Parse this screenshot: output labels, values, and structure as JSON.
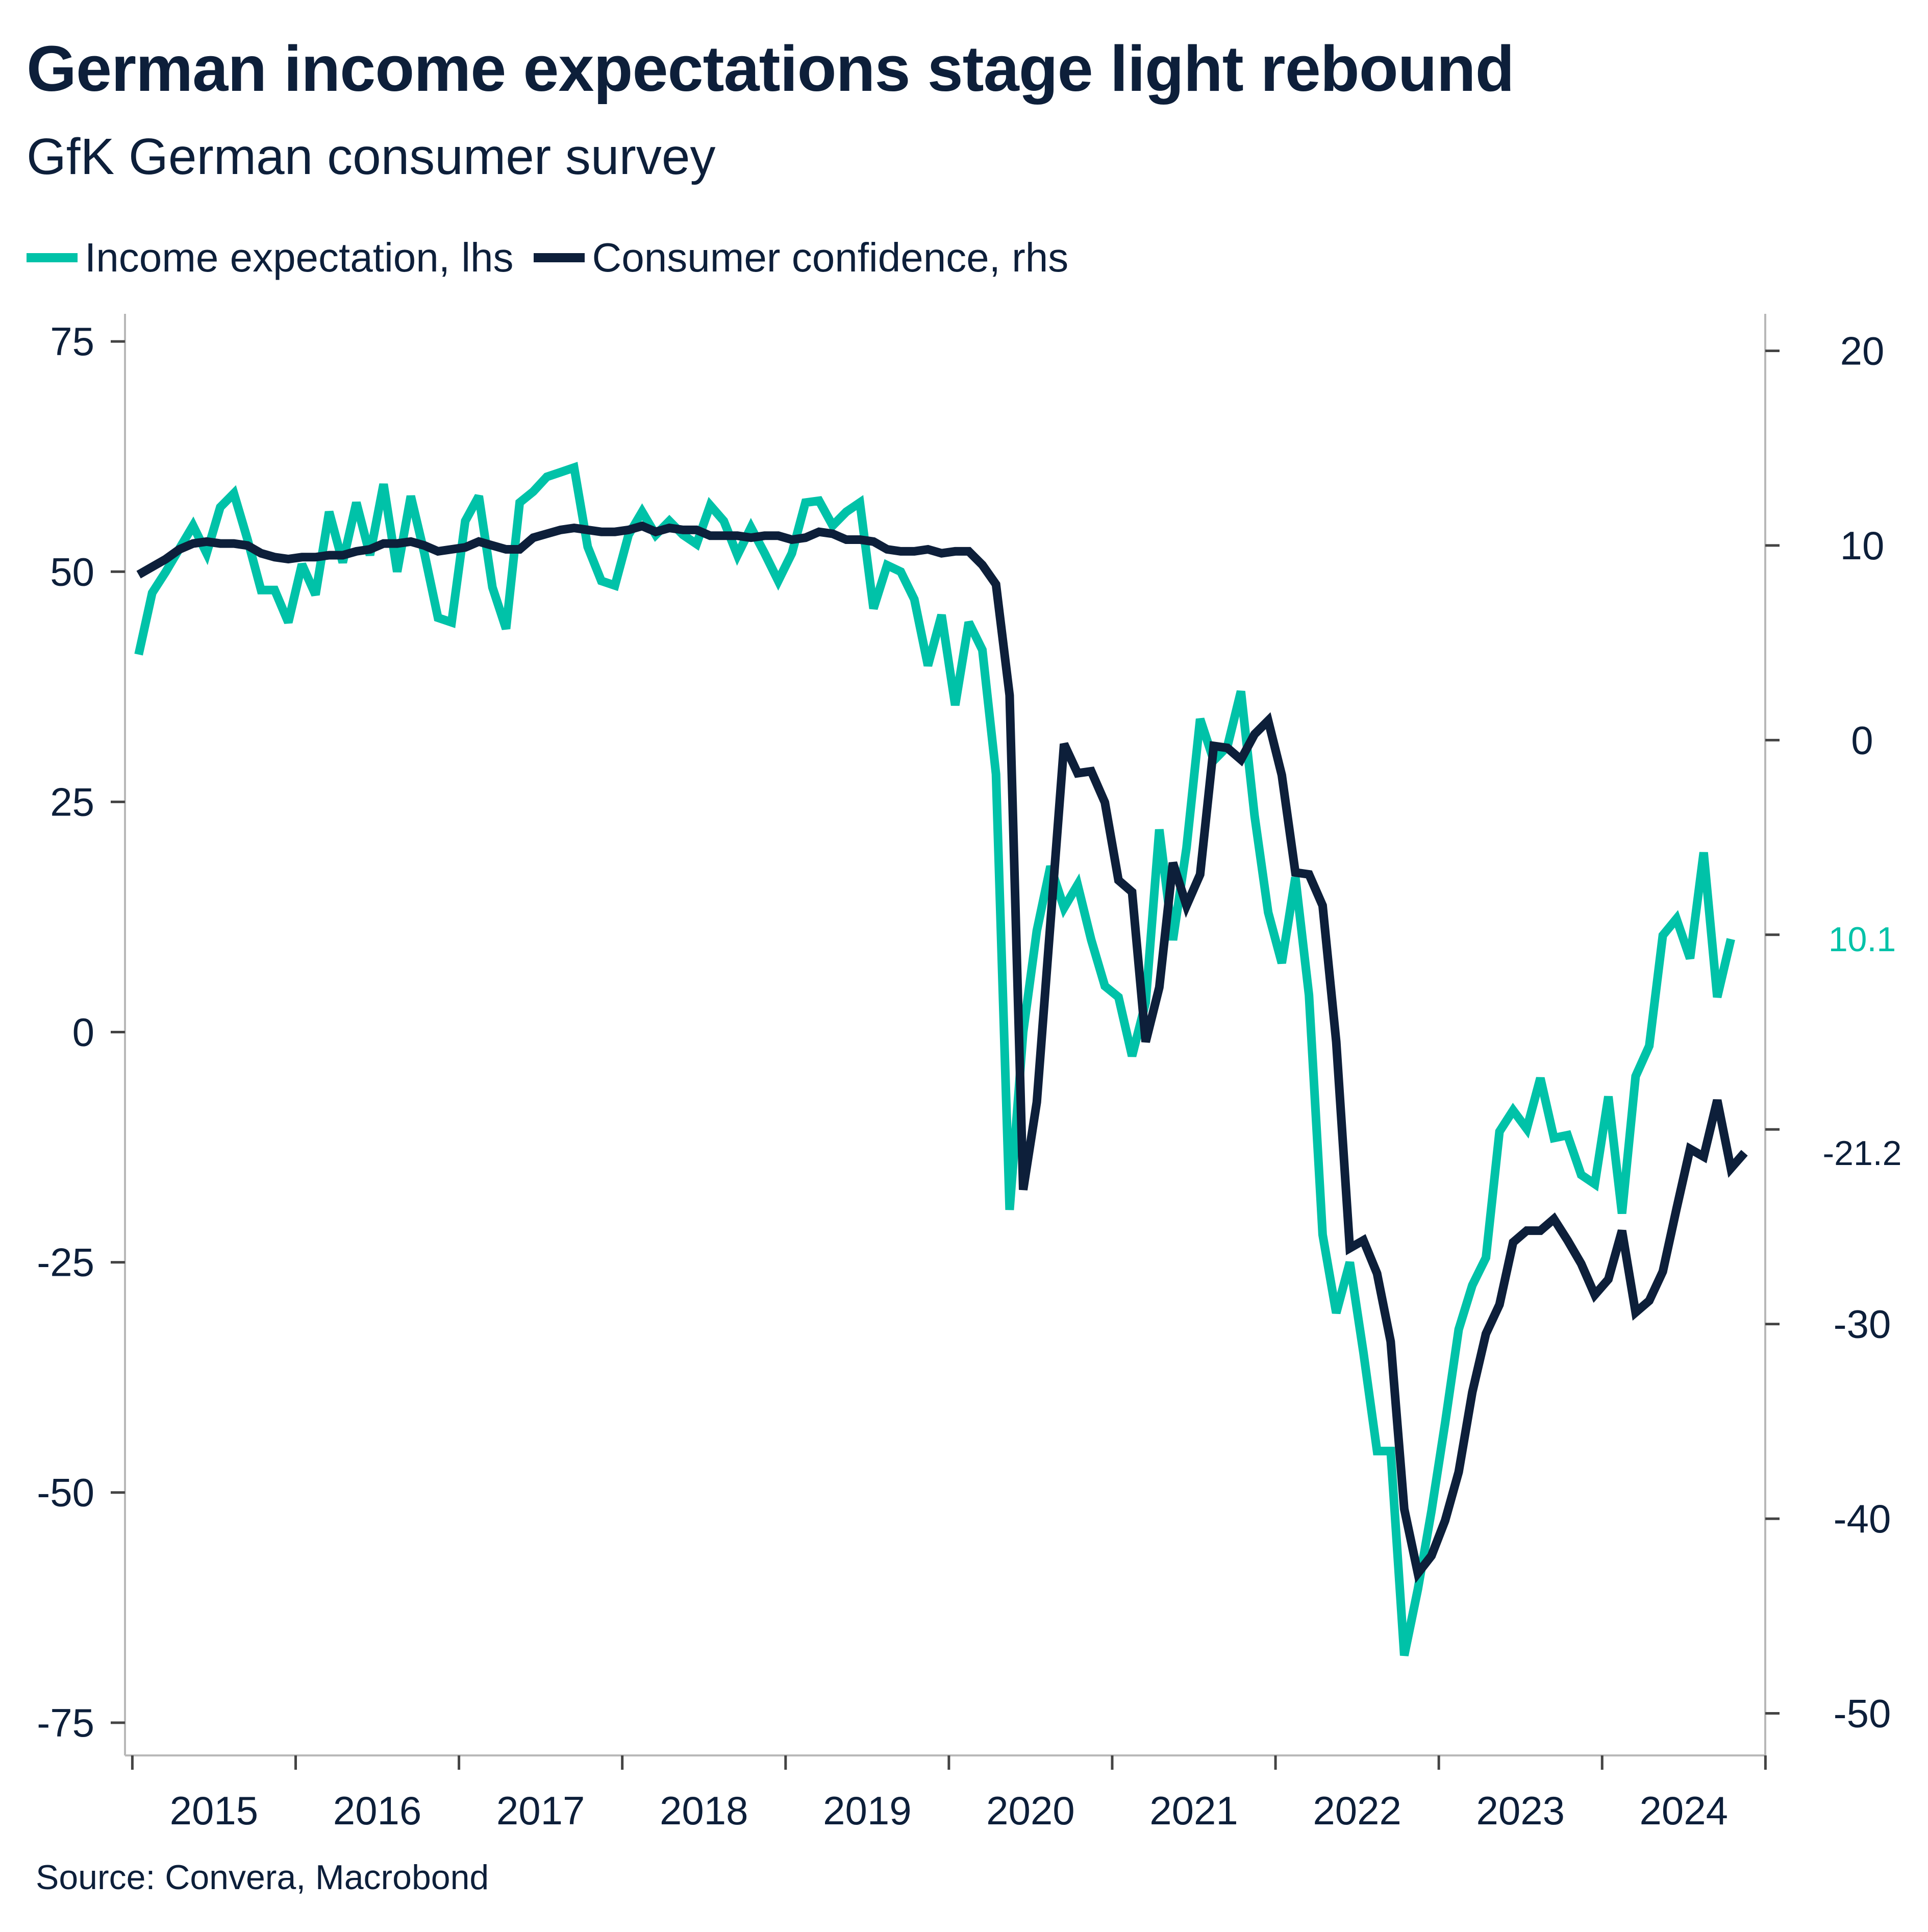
{
  "title": "German income expectations stage light rebound",
  "subtitle": "GfK German consumer survey",
  "source": "Source: Convera, Macrobond",
  "colors": {
    "income": "#00c2a8",
    "confidence": "#0d1f3a",
    "axis": "#b8b8b8",
    "text": "#0d1f3a"
  },
  "legend": {
    "income_label": "Income expectation, lhs",
    "confidence_label": "Consumer confidence, rhs"
  },
  "end_labels": {
    "income": "10.1",
    "confidence": "-21.2"
  },
  "chart_data": {
    "type": "line",
    "x_axis": {
      "type": "time",
      "range": [
        "2014-12-15",
        "2024-12-31"
      ],
      "tick_labels": [
        "2015",
        "2016",
        "2017",
        "2018",
        "2019",
        "2020",
        "2021",
        "2022",
        "2023",
        "2024"
      ],
      "label_placement": "centered-between-ticks"
    },
    "y_left": {
      "ticks": [
        75,
        50,
        25,
        0,
        -25,
        -50,
        -75
      ],
      "tick_labels": [
        "75",
        "50",
        "25",
        "0",
        "-25",
        "-50",
        "-75"
      ],
      "range": [
        -78,
        78
      ]
    },
    "y_right": {
      "ticks": [
        20,
        10,
        0,
        -10,
        -20,
        -30,
        -40,
        -50
      ],
      "tick_labels": [
        "20",
        "10",
        "0",
        "",
        "",
        "-30",
        "-40",
        "-50"
      ],
      "range": [
        -51.9,
        21.9
      ]
    },
    "grid": false,
    "legend_placement": "top-left",
    "series": [
      {
        "name": "Income expectation, lhs",
        "axis": "left",
        "color": "#00c2a8",
        "points": [
          [
            "2015-01",
            41
          ],
          [
            "2015-02",
            47.7
          ],
          [
            "2015-03",
            50
          ],
          [
            "2015-04",
            52.5
          ],
          [
            "2015-05",
            55
          ],
          [
            "2015-06",
            52
          ],
          [
            "2015-07",
            57
          ],
          [
            "2015-08",
            58.5
          ],
          [
            "2015-09",
            53.5
          ],
          [
            "2015-10",
            48
          ],
          [
            "2015-11",
            48
          ],
          [
            "2015-12",
            44.5
          ],
          [
            "2016-01",
            50.8
          ],
          [
            "2016-02",
            47.5
          ],
          [
            "2016-03",
            56.5
          ],
          [
            "2016-04",
            51
          ],
          [
            "2016-05",
            57.5
          ],
          [
            "2016-06",
            51.8
          ],
          [
            "2016-07",
            59.5
          ],
          [
            "2016-08",
            50
          ],
          [
            "2016-09",
            58.2
          ],
          [
            "2016-10",
            52
          ],
          [
            "2016-11",
            45
          ],
          [
            "2016-12",
            44.5
          ],
          [
            "2017-01",
            55.5
          ],
          [
            "2017-02",
            58.2
          ],
          [
            "2017-03",
            48.3
          ],
          [
            "2017-04",
            43.8
          ],
          [
            "2017-05",
            57.5
          ],
          [
            "2017-06",
            58.7
          ],
          [
            "2017-07",
            60.3
          ],
          [
            "2017-08",
            60.8
          ],
          [
            "2017-09",
            61.3
          ],
          [
            "2017-10",
            52.7
          ],
          [
            "2017-11",
            49
          ],
          [
            "2017-12",
            48.5
          ],
          [
            "2018-01",
            54
          ],
          [
            "2018-02",
            56.5
          ],
          [
            "2018-03",
            54
          ],
          [
            "2018-04",
            55.5
          ],
          [
            "2018-05",
            54
          ],
          [
            "2018-06",
            53
          ],
          [
            "2018-07",
            57.2
          ],
          [
            "2018-08",
            55.5
          ],
          [
            "2018-09",
            51.8
          ],
          [
            "2018-10",
            54.8
          ],
          [
            "2018-11",
            52
          ],
          [
            "2018-12",
            49
          ],
          [
            "2019-01",
            52
          ],
          [
            "2019-02",
            57.5
          ],
          [
            "2019-03",
            57.7
          ],
          [
            "2019-04",
            55
          ],
          [
            "2019-05",
            56.5
          ],
          [
            "2019-06",
            57.5
          ],
          [
            "2019-07",
            46
          ],
          [
            "2019-08",
            50.7
          ],
          [
            "2019-09",
            50
          ],
          [
            "2019-10",
            47
          ],
          [
            "2019-11",
            39.8
          ],
          [
            "2019-12",
            45.3
          ],
          [
            "2020-01",
            35.5
          ],
          [
            "2020-02",
            44.5
          ],
          [
            "2020-03",
            41.5
          ],
          [
            "2020-04",
            28
          ],
          [
            "2020-05",
            -19.3
          ],
          [
            "2020-06",
            0
          ],
          [
            "2020-07",
            11
          ],
          [
            "2020-08",
            18
          ],
          [
            "2020-09",
            13.5
          ],
          [
            "2020-10",
            16
          ],
          [
            "2020-11",
            10
          ],
          [
            "2020-12",
            5
          ],
          [
            "2021-01",
            3.8
          ],
          [
            "2021-02",
            -2.6
          ],
          [
            "2021-03",
            3.2
          ],
          [
            "2021-04",
            22
          ],
          [
            "2021-05",
            10
          ],
          [
            "2021-06",
            20
          ],
          [
            "2021-07",
            34
          ],
          [
            "2021-08",
            29.5
          ],
          [
            "2021-09",
            31
          ],
          [
            "2021-10",
            37
          ],
          [
            "2021-11",
            23.5
          ],
          [
            "2021-12",
            13
          ],
          [
            "2022-01",
            7.5
          ],
          [
            "2022-02",
            16.8
          ],
          [
            "2022-03",
            4
          ],
          [
            "2022-04",
            -22
          ],
          [
            "2022-05",
            -30.5
          ],
          [
            "2022-06",
            -25
          ],
          [
            "2022-07",
            -34.8
          ],
          [
            "2022-08",
            -45.5
          ],
          [
            "2022-09",
            -45.5
          ],
          [
            "2022-10",
            -67.7
          ],
          [
            "2022-11",
            -60.5
          ],
          [
            "2022-12",
            -52
          ],
          [
            "2023-01",
            -42.5
          ],
          [
            "2023-02",
            -32.3
          ],
          [
            "2023-03",
            -27.5
          ],
          [
            "2023-04",
            -24.5
          ],
          [
            "2023-05",
            -10.8
          ],
          [
            "2023-06",
            -8.5
          ],
          [
            "2023-07",
            -10.5
          ],
          [
            "2023-08",
            -5
          ],
          [
            "2023-09",
            -11.5
          ],
          [
            "2023-10",
            -11.2
          ],
          [
            "2023-11",
            -15.5
          ],
          [
            "2023-12",
            -16.5
          ],
          [
            "2024-01",
            -7
          ],
          [
            "2024-02",
            -19.7
          ],
          [
            "2024-03",
            -4.8
          ],
          [
            "2024-04",
            -1.5
          ],
          [
            "2024-05",
            10.5
          ],
          [
            "2024-06",
            12.3
          ],
          [
            "2024-07",
            8
          ],
          [
            "2024-08",
            19.5
          ],
          [
            "2024-09",
            3.8
          ],
          [
            "2024-10",
            10.1
          ]
        ]
      },
      {
        "name": "Consumer confidence, rhs",
        "axis": "right",
        "color": "#0d1f3a",
        "points": [
          [
            "2015-01",
            8.5
          ],
          [
            "2015-02",
            8.9
          ],
          [
            "2015-03",
            9.3
          ],
          [
            "2015-04",
            9.8
          ],
          [
            "2015-05",
            10.1
          ],
          [
            "2015-06",
            10.2
          ],
          [
            "2015-07",
            10.1
          ],
          [
            "2015-08",
            10.1
          ],
          [
            "2015-09",
            10
          ],
          [
            "2015-10",
            9.6
          ],
          [
            "2015-11",
            9.4
          ],
          [
            "2015-12",
            9.3
          ],
          [
            "2016-01",
            9.4
          ],
          [
            "2016-02",
            9.4
          ],
          [
            "2016-03",
            9.5
          ],
          [
            "2016-04",
            9.5
          ],
          [
            "2016-05",
            9.7
          ],
          [
            "2016-06",
            9.8
          ],
          [
            "2016-07",
            10.1
          ],
          [
            "2016-08",
            10.1
          ],
          [
            "2016-09",
            10.2
          ],
          [
            "2016-10",
            10
          ],
          [
            "2016-11",
            9.7
          ],
          [
            "2016-12",
            9.8
          ],
          [
            "2017-01",
            9.9
          ],
          [
            "2017-02",
            10.2
          ],
          [
            "2017-03",
            10
          ],
          [
            "2017-04",
            9.8
          ],
          [
            "2017-05",
            9.8
          ],
          [
            "2017-06",
            10.4
          ],
          [
            "2017-07",
            10.6
          ],
          [
            "2017-08",
            10.8
          ],
          [
            "2017-09",
            10.9
          ],
          [
            "2017-10",
            10.8
          ],
          [
            "2017-11",
            10.7
          ],
          [
            "2017-12",
            10.7
          ],
          [
            "2018-01",
            10.8
          ],
          [
            "2018-02",
            11
          ],
          [
            "2018-03",
            10.7
          ],
          [
            "2018-04",
            10.9
          ],
          [
            "2018-05",
            10.8
          ],
          [
            "2018-06",
            10.8
          ],
          [
            "2018-07",
            10.5
          ],
          [
            "2018-08",
            10.5
          ],
          [
            "2018-09",
            10.5
          ],
          [
            "2018-10",
            10.4
          ],
          [
            "2018-11",
            10.5
          ],
          [
            "2018-12",
            10.5
          ],
          [
            "2019-01",
            10.3
          ],
          [
            "2019-02",
            10.4
          ],
          [
            "2019-03",
            10.7
          ],
          [
            "2019-04",
            10.6
          ],
          [
            "2019-05",
            10.3
          ],
          [
            "2019-06",
            10.3
          ],
          [
            "2019-07",
            10.2
          ],
          [
            "2019-08",
            9.8
          ],
          [
            "2019-09",
            9.7
          ],
          [
            "2019-10",
            9.7
          ],
          [
            "2019-11",
            9.8
          ],
          [
            "2019-12",
            9.6
          ],
          [
            "2020-01",
            9.7
          ],
          [
            "2020-02",
            9.7
          ],
          [
            "2020-03",
            9
          ],
          [
            "2020-04",
            8
          ],
          [
            "2020-05",
            2.3
          ],
          [
            "2020-06",
            -23.1
          ],
          [
            "2020-07",
            -18.6
          ],
          [
            "2020-08",
            -9.4
          ],
          [
            "2020-09",
            -0.2
          ],
          [
            "2020-10",
            -1.7
          ],
          [
            "2020-11",
            -1.6
          ],
          [
            "2020-12",
            -3.2
          ],
          [
            "2021-01",
            -7.2
          ],
          [
            "2021-02",
            -7.8
          ],
          [
            "2021-03",
            -15.5
          ],
          [
            "2021-04",
            -12.7
          ],
          [
            "2021-05",
            -6.3
          ],
          [
            "2021-06",
            -8.5
          ],
          [
            "2021-07",
            -6.9
          ],
          [
            "2021-08",
            -0.3
          ],
          [
            "2021-09",
            -0.4
          ],
          [
            "2021-10",
            -1.0
          ],
          [
            "2021-11",
            0.3
          ],
          [
            "2021-12",
            1.0
          ],
          [
            "2022-01",
            -1.8
          ],
          [
            "2022-02",
            -6.8
          ],
          [
            "2022-03",
            -6.9
          ],
          [
            "2022-04",
            -8.5
          ],
          [
            "2022-05",
            -15.5
          ],
          [
            "2022-06",
            -26.1
          ],
          [
            "2022-07",
            -25.7
          ],
          [
            "2022-08",
            -27.4
          ],
          [
            "2022-09",
            -30.9
          ],
          [
            "2022-10",
            -39.5
          ],
          [
            "2022-11",
            -42.8
          ],
          [
            "2022-12",
            -41.9
          ],
          [
            "2023-01",
            -40.1
          ],
          [
            "2023-02",
            -37.6
          ],
          [
            "2023-03",
            -33.5
          ],
          [
            "2023-04",
            -30.5
          ],
          [
            "2023-05",
            -29.0
          ],
          [
            "2023-06",
            -25.8
          ],
          [
            "2023-07",
            -25.2
          ],
          [
            "2023-08",
            -25.2
          ],
          [
            "2023-09",
            -24.6
          ],
          [
            "2023-10",
            -25.7
          ],
          [
            "2023-11",
            -26.9
          ],
          [
            "2023-12",
            -28.5
          ],
          [
            "2024-01",
            -27.7
          ],
          [
            "2024-02",
            -25.2
          ],
          [
            "2024-03",
            -29.4
          ],
          [
            "2024-04",
            -28.8
          ],
          [
            "2024-05",
            -27.3
          ],
          [
            "2024-06",
            -24.1
          ],
          [
            "2024-07",
            -21.0
          ],
          [
            "2024-08",
            -21.4
          ],
          [
            "2024-09",
            -18.5
          ],
          [
            "2024-10",
            -22.0
          ],
          [
            "2024-11",
            -21.2
          ]
        ]
      }
    ]
  }
}
